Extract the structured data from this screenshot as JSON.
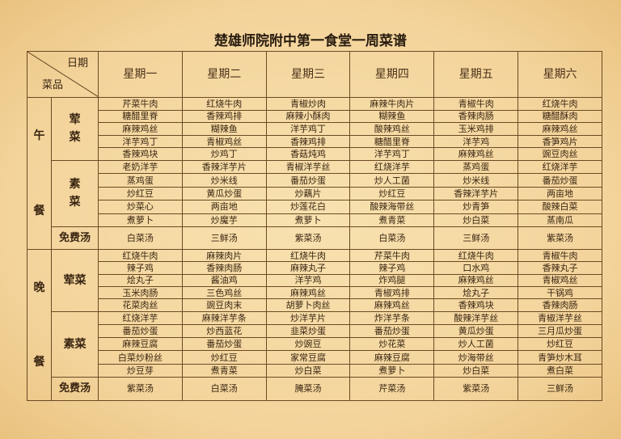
{
  "title": "楚雄师院附中第一食堂一周菜谱",
  "header": {
    "date_label": "日期",
    "dish_label": "菜品"
  },
  "days": [
    "星期一",
    "星期二",
    "星期三",
    "星期四",
    "星期五",
    "星期六"
  ],
  "lunch": {
    "meal_chars": [
      "午",
      "餐"
    ],
    "meat_chars": [
      "荤",
      "菜"
    ],
    "veg_chars": [
      "素",
      "菜"
    ],
    "soup_label": "免费汤",
    "meat": [
      [
        "芹菜牛肉",
        "红烧牛肉",
        "青椒炒肉",
        "麻辣牛肉片",
        "青椒牛肉",
        "红烧牛肉"
      ],
      [
        "糖醋里脊",
        "香辣鸡排",
        "麻辣小酥肉",
        "糊辣鱼",
        "香辣肉肠",
        "糖醋酥肉"
      ],
      [
        "麻辣鸡丝",
        "糊辣鱼",
        "洋芋鸡丁",
        "酸辣鸡丝",
        "玉米鸡排",
        "麻辣鸡丝"
      ],
      [
        "洋芋鸡丁",
        "青椒鸡丝",
        "香辣鸡排",
        "糖醋里脊",
        "洋芋鸡",
        "香笋鸡片"
      ],
      [
        "香辣鸡块",
        "炒鸡丁",
        "香菇炖鸡",
        "洋芋鸡丁",
        "麻辣鸡丝",
        "豌豆肉丝"
      ]
    ],
    "veg": [
      [
        "老奶洋芋",
        "香辣洋芋片",
        "青椒洋芋丝",
        "红烧洋芋",
        "蒸鸡蛋",
        "红烧洋芋"
      ],
      [
        "蒸鸡蛋",
        "炒米线",
        "番茄炒蛋",
        "炒人工菌",
        "炒米线",
        "番茄炒蛋"
      ],
      [
        "炒红豆",
        "黄瓜炒蛋",
        "炒藕片",
        "炒红豆",
        "香辣洋芋片",
        "两亩地"
      ],
      [
        "炒菜心",
        "两亩地",
        "炒莲花白",
        "酸辣海带丝",
        "炒青笋",
        "酸辣白菜"
      ],
      [
        "煮萝卜",
        "炒魔芋",
        "煮萝卜",
        "煮青菜",
        "炒白菜",
        "蒸南瓜"
      ]
    ],
    "soup": [
      "白菜汤",
      "三鲜汤",
      "紫菜汤",
      "白菜汤",
      "三鲜汤",
      "紫菜汤"
    ]
  },
  "dinner": {
    "meal_chars": [
      "晚",
      "餐"
    ],
    "meat_label": "荤菜",
    "veg_label": "素菜",
    "soup_label": "免费汤",
    "meat": [
      [
        "红烧牛肉",
        "麻辣肉片",
        "红烧牛肉",
        "芹菜牛肉",
        "红烧牛肉",
        "青椒牛肉"
      ],
      [
        "辣子鸡",
        "香辣肉肠",
        "麻辣丸子",
        "辣子鸡",
        "口水鸡",
        "香辣丸子"
      ],
      [
        "烩丸子",
        "酱油鸡",
        "洋芋鸡",
        "炸鸡腿",
        "麻辣鸡丝",
        "青椒鸡丝"
      ],
      [
        "玉米肉肠",
        "三色鸡丝",
        "麻辣鸡丝",
        "青椒鸡排",
        "烩丸子",
        "干锅鸡"
      ],
      [
        "花菜肉丝",
        "豌豆肉末",
        "胡萝卜肉丝",
        "麻辣鸡丝",
        "香辣鸡块",
        "香辣肉肠"
      ]
    ],
    "veg": [
      [
        "红烧洋芋",
        "麻辣洋芋条",
        "炒洋芋片",
        "炸洋芋条",
        "酸辣洋芋丝",
        "青椒洋芋丝"
      ],
      [
        "番茄炒蛋",
        "炒西蓝花",
        "韭菜炒蛋",
        "番茄炒蛋",
        "黄瓜炒蛋",
        "三月瓜炒蛋"
      ],
      [
        "麻辣豆腐",
        "番茄炒蛋",
        "炒豌豆",
        "炒花菜",
        "炒人工菌",
        "炒红豆"
      ],
      [
        "白菜炒粉丝",
        "炒红豆",
        "家常豆腐",
        "麻辣豆腐",
        "炒海带丝",
        "青笋炒木耳"
      ],
      [
        "炒豆芽",
        "煮青菜",
        "炒白菜",
        "煮萝卜",
        "炒白菜",
        "煮白菜"
      ]
    ],
    "soup": [
      "紫菜汤",
      "白菜汤",
      "腌菜汤",
      "芹菜汤",
      "紫菜汤",
      "三鲜汤"
    ]
  }
}
